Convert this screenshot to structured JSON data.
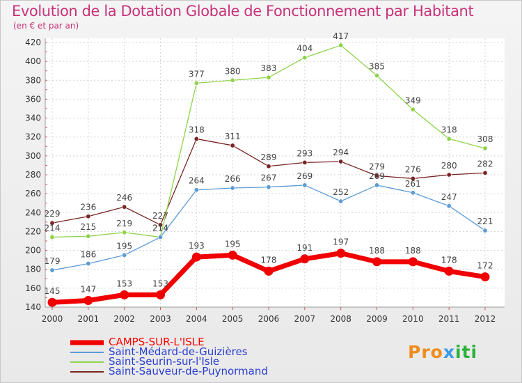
{
  "title": "Evolution de la Dotation Globale de Fonctionnement par Habitant",
  "subtitle": "(en € et par an)",
  "logo": {
    "parts": [
      "Pro",
      "x",
      "iti"
    ],
    "colors": [
      "#f08c1e",
      "#3c9be6",
      "#2ab33a"
    ]
  },
  "chart_data": {
    "type": "line",
    "x": [
      "2000",
      "2001",
      "2002",
      "2003",
      "2004",
      "2005",
      "2006",
      "2007",
      "2008",
      "2009",
      "2010",
      "2011",
      "2012"
    ],
    "ylim": [
      140,
      420
    ],
    "yticks": [
      140,
      160,
      180,
      200,
      220,
      240,
      260,
      280,
      300,
      320,
      340,
      360,
      380,
      400,
      420
    ],
    "grid": true,
    "legend_position": "bottom-left",
    "series": [
      {
        "name": "Saint-Sauveur-de-Puynormand",
        "color": "#7a2424",
        "values": [
          229,
          236,
          246,
          227,
          318,
          311,
          289,
          293,
          294,
          279,
          276,
          280,
          282
        ],
        "labels": [
          "229",
          "236",
          "246",
          "227",
          "318",
          "311",
          "289",
          "293",
          "294",
          "279",
          "276",
          "280",
          "282"
        ]
      },
      {
        "name": "Saint-Seurin-sur-l'Isle",
        "color": "#8fd24a",
        "values": [
          214,
          215,
          219,
          214,
          377,
          380,
          383,
          404,
          417,
          385,
          349,
          318,
          308
        ],
        "labels": [
          "214",
          "215",
          "219",
          "214",
          "377",
          "380",
          "383",
          "404",
          "417",
          "385",
          "349",
          "318",
          "308"
        ]
      },
      {
        "name": "Saint-Médard-de-Guizières",
        "color": "#5b9bd5",
        "values": [
          179,
          186,
          195,
          214,
          264,
          266,
          267,
          269,
          252,
          269,
          261,
          247,
          221
        ],
        "labels": [
          "179",
          "186",
          "195",
          "214",
          "264",
          "266",
          "267",
          "269",
          "252",
          "269",
          "261",
          "247",
          "221"
        ]
      },
      {
        "name": "CAMPS-SUR-L'ISLE",
        "color": "#f00000",
        "values": [
          145,
          147,
          153,
          153,
          193,
          195,
          178,
          191,
          197,
          188,
          188,
          178,
          172
        ],
        "labels": [
          "145",
          "147",
          "153",
          "153",
          "193",
          "195",
          "178",
          "191",
          "197",
          "188",
          "188",
          "178",
          "172"
        ]
      }
    ],
    "legend_order": [
      "CAMPS-SUR-L'ISLE",
      "Saint-Médard-de-Guizières",
      "Saint-Seurin-sur-l'Isle",
      "Saint-Sauveur-de-Puynormand"
    ]
  }
}
